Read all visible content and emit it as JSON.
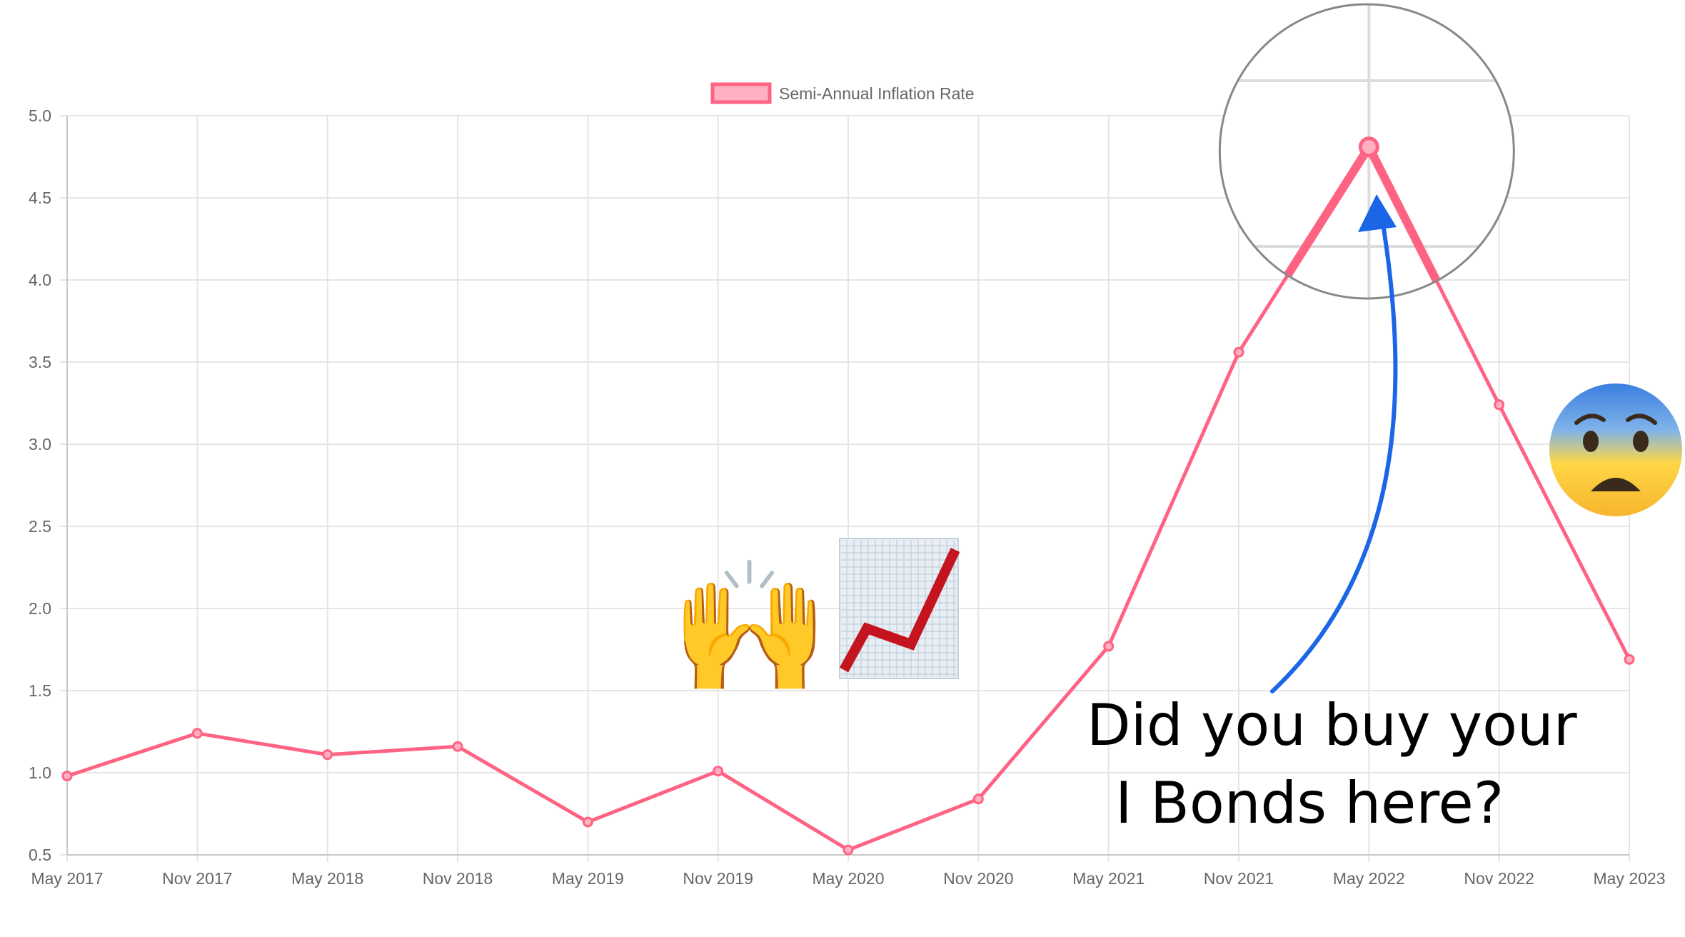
{
  "chart_data": {
    "type": "line",
    "x": [
      "May 2017",
      "Nov 2017",
      "May 2018",
      "Nov 2018",
      "May 2019",
      "Nov 2019",
      "May 2020",
      "Nov 2020",
      "May 2021",
      "Nov 2021",
      "May 2022",
      "Nov 2022",
      "May 2023"
    ],
    "series": [
      {
        "name": "Semi-Annual Inflation Rate",
        "values": [
          0.98,
          1.24,
          1.11,
          1.16,
          0.7,
          1.01,
          0.53,
          0.84,
          1.77,
          3.56,
          4.81,
          3.24,
          1.69
        ]
      }
    ],
    "ylim": [
      0.5,
      5.0
    ],
    "yticks": [
      "0.5",
      "1.0",
      "1.5",
      "2.0",
      "2.5",
      "3.0",
      "3.5",
      "4.0",
      "4.5",
      "5.0"
    ],
    "grid": true,
    "legend": "top-center",
    "colors": {
      "line": "#ff6384",
      "fill": "#ffb1c1",
      "grid": "#e5e5e5",
      "axis_text": "#666666",
      "arrow": "#1a66e6",
      "magnifier": "#888888"
    }
  },
  "annotation": {
    "line1": "Did you buy your",
    "line2": "I Bonds here?"
  },
  "emoji": {
    "hands": "🙌",
    "chart": "📈",
    "fearful": "😨"
  }
}
